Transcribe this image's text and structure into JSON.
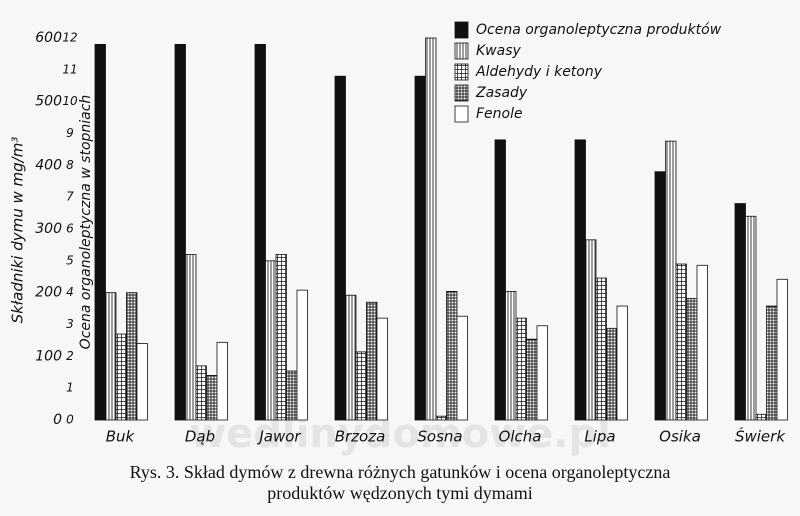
{
  "chart_data": {
    "type": "bar",
    "caption": [
      "Rys. 3. Skład dymów z drewna różnych gatunków i ocena organoleptyczna",
      "produktów wędzonych tymi dymami"
    ],
    "ylabel": "Składniki dymu w mg/m³",
    "y2label": "Ocena organoleptyczna w stopniach",
    "watermark": "wedlinydomowe.pl",
    "categories": [
      "Buk",
      "Dąb",
      "Jawor",
      "Brzoza",
      "Sosna",
      "Olcha",
      "Lipa",
      "Osika",
      "Świerk"
    ],
    "series": [
      {
        "name": "Ocena organoleptyczna produktów",
        "color": "#111111",
        "hatch": "solid",
        "axis": "y2",
        "values": [
          11.8,
          11.8,
          11.8,
          10.8,
          10.8,
          8.8,
          8.8,
          7.8,
          6.8
        ]
      },
      {
        "name": "Kwasy",
        "color": "#ffffff",
        "hatch": "vertical",
        "values": [
          200,
          260,
          250,
          196,
          600,
          202,
          283,
          438,
          320
        ]
      },
      {
        "name": "Aldehydy i ketony",
        "color": "#ffffff",
        "hatch": "grid",
        "values": [
          135,
          85,
          260,
          107,
          6,
          160,
          223,
          245,
          9
        ]
      },
      {
        "name": "Zasady",
        "color": "#ffffff",
        "hatch": "dense",
        "values": [
          200,
          70,
          77,
          185,
          202,
          127,
          144,
          191,
          179
        ]
      },
      {
        "name": "Fenole",
        "color": "#ffffff",
        "hatch": "solid",
        "values": [
          120,
          122,
          204,
          160,
          163,
          148,
          179,
          243,
          221
        ]
      }
    ],
    "ylim": [
      0,
      600
    ],
    "yticks": [
      0,
      100,
      200,
      300,
      400,
      500,
      600
    ],
    "y2lim": [
      0,
      12
    ],
    "y2ticks": [
      0,
      1,
      2,
      3,
      4,
      5,
      6,
      7,
      8,
      9,
      10,
      11,
      12
    ],
    "legend": "top-right"
  }
}
